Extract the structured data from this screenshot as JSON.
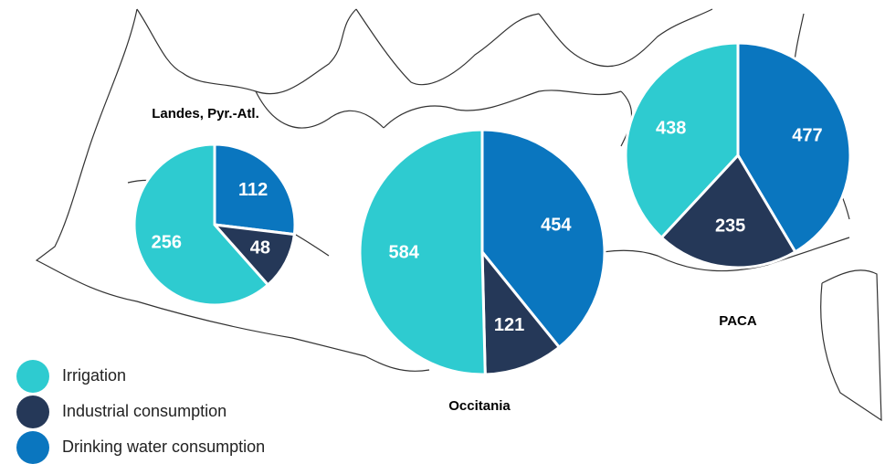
{
  "legend": {
    "items": [
      {
        "label": "Irrigation",
        "color": "#2ecbd0"
      },
      {
        "label": "Industrial consumption",
        "color": "#253858"
      },
      {
        "label": "Drinking water consumption",
        "color": "#0a76bf"
      }
    ]
  },
  "pies": [
    {
      "label": "Landes, Pyr.-Atl.",
      "values": [
        256,
        48,
        112
      ]
    },
    {
      "label": "Occitania",
      "values": [
        584,
        121,
        454
      ]
    },
    {
      "label": "PACA",
      "values": [
        438,
        235,
        477
      ]
    }
  ]
}
